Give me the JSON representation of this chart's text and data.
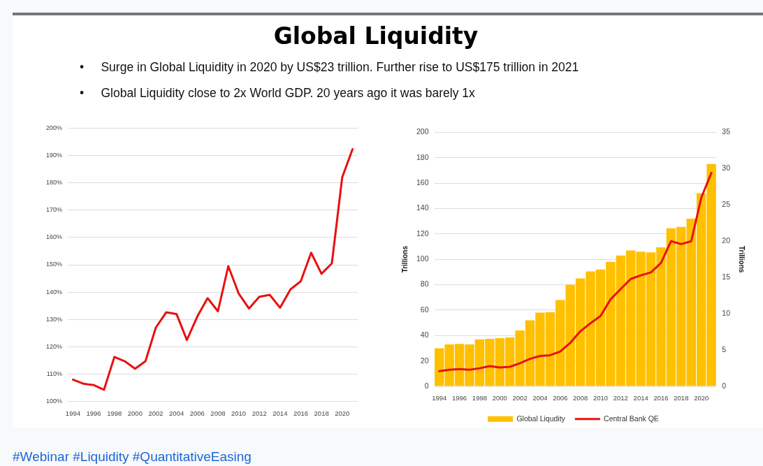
{
  "chart_data": [
    {
      "type": "line",
      "title": "Global Liquidity",
      "annotations": [
        "•     Surge in Global Liquidity in 2020 by US$23 trillion. Further rise to US$175 trillion in 2021",
        "•     Global Liquidity close to 2x World GDP. 20 years ago it was barely 1x"
      ],
      "categories": [
        "1994",
        null,
        "1996",
        null,
        "1998",
        null,
        "2000",
        null,
        "2002",
        null,
        "2004",
        null,
        "2006",
        null,
        "2008",
        null,
        "2010",
        null,
        "2012",
        null,
        "2014",
        null,
        "2016",
        null,
        "2018",
        null,
        "2020",
        null
      ],
      "series": [
        {
          "color": "#e8110f",
          "values": [
            108,
            106.5,
            106,
            104.3,
            116.3,
            114.7,
            112,
            114.7,
            127,
            132.6,
            132,
            122.5,
            131,
            137.8,
            133,
            149.5,
            139.5,
            134,
            138.3,
            139,
            134.3,
            141,
            144,
            154.4,
            146.7,
            150.5,
            182,
            192.3
          ]
        }
      ],
      "ylim": [
        100,
        200
      ],
      "yticks": [
        {
          "value": 100,
          "label": "100%"
        },
        {
          "value": 110,
          "label": "110%"
        },
        {
          "value": 120,
          "label": "120%"
        },
        {
          "value": 130,
          "label": "130%"
        },
        {
          "value": 140,
          "label": "140%"
        },
        {
          "value": 150,
          "label": "150%"
        },
        {
          "value": 160,
          "label": "160%"
        },
        {
          "value": 170,
          "label": "170%"
        },
        {
          "value": 180,
          "label": "180%"
        },
        {
          "value": 190,
          "label": "190%"
        },
        {
          "value": 200,
          "label": "200%"
        }
      ],
      "grid": "y",
      "legend": false,
      "marker": "none"
    },
    {
      "type": "bar",
      "ylabel": "Trillions",
      "y2label": "Trillions",
      "annotations": [
        "#Webinar #Liquidity #QuantitativeEasing"
      ],
      "categories": [
        "1994",
        null,
        "1996",
        null,
        "1998",
        null,
        "2000",
        null,
        "2002",
        null,
        "2004",
        null,
        "2006",
        null,
        "2008",
        null,
        "2010",
        null,
        "2012",
        null,
        "2014",
        null,
        "2016",
        null,
        "2018",
        null,
        "2020",
        null
      ],
      "series": [
        {
          "name": "Global Liqudity",
          "type": "bar",
          "color": "#ffc000",
          "values": [
            30,
            33,
            33.5,
            33,
            37,
            37.5,
            38,
            38.5,
            44,
            52,
            58,
            58.5,
            68,
            80,
            85,
            90.5,
            92,
            98,
            103,
            107,
            106,
            105.5,
            109.5,
            124.5,
            125.5,
            132,
            152,
            175
          ]
        },
        {
          "name": "Central Bank QE",
          "type": "line",
          "axis": "y2",
          "color": "#e8110f",
          "values": [
            2.1,
            2.3,
            2.4,
            2.3,
            2.5,
            2.8,
            2.6,
            2.7,
            3.2,
            3.8,
            4.2,
            4.3,
            4.8,
            6.0,
            7.6,
            8.7,
            9.7,
            12.0,
            13.4,
            14.8,
            15.3,
            15.7,
            17.0,
            20.0,
            19.6,
            20.0,
            26.0,
            29.4
          ]
        }
      ],
      "ylim": [
        0,
        200
      ],
      "yticks": [
        0,
        20,
        40,
        60,
        80,
        100,
        120,
        140,
        160,
        180,
        200
      ],
      "y2lim": [
        0,
        35
      ],
      "y2ticks": [
        0,
        5,
        10,
        15,
        20,
        25,
        30,
        35
      ],
      "grid": "y",
      "legend": "bottom",
      "marker": "none"
    }
  ]
}
